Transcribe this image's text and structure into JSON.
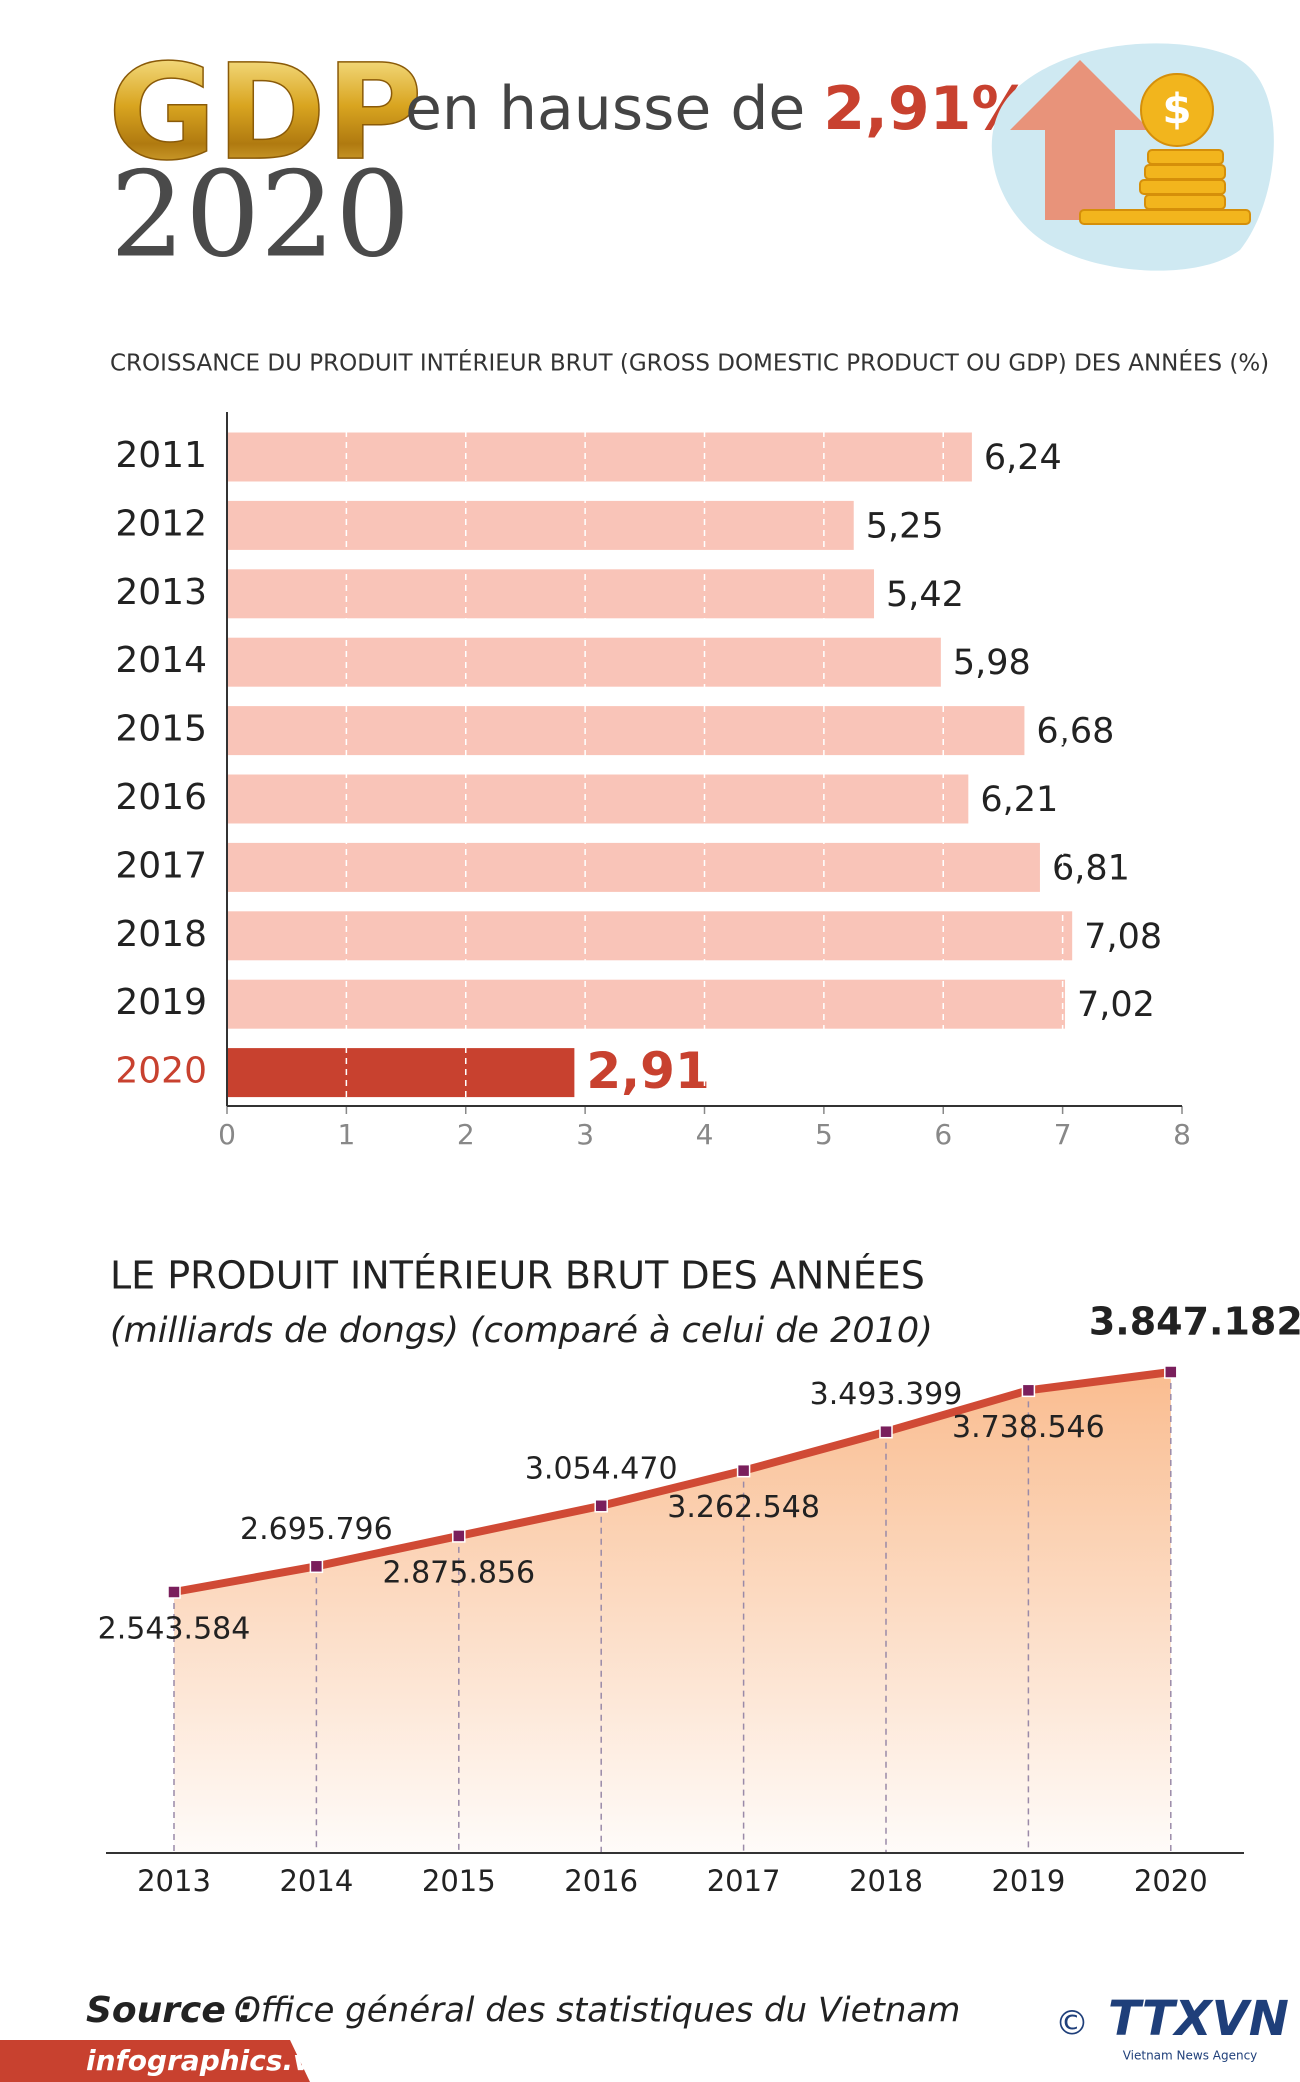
{
  "header": {
    "title": "GDP",
    "year": "2020",
    "headline": "en hausse de",
    "headline_value": "2,91%"
  },
  "chart_data": [
    {
      "type": "bar",
      "orientation": "horizontal",
      "title": "CROISSANCE DU PRODUIT INTÉRIEUR BRUT (GROSS DOMESTIC PRODUCT OU GDP) DES ANNÉES (%)",
      "categories": [
        "2011",
        "2012",
        "2013",
        "2014",
        "2015",
        "2016",
        "2017",
        "2018",
        "2019",
        "2020"
      ],
      "values": [
        6.24,
        5.25,
        5.42,
        5.98,
        6.68,
        6.21,
        6.81,
        7.08,
        7.02,
        2.91
      ],
      "value_labels": [
        "6,24",
        "5,25",
        "5,42",
        "5,98",
        "6,68",
        "6,21",
        "6,81",
        "7,08",
        "7,02",
        "2,91"
      ],
      "colors": [
        "#f9c4b8",
        "#f9c4b8",
        "#f9c4b8",
        "#f9c4b8",
        "#f9c4b8",
        "#f9c4b8",
        "#f9c4b8",
        "#f9c4b8",
        "#f9c4b8",
        "#c8412f"
      ],
      "xlim": [
        0,
        8
      ],
      "xticks": [
        0,
        1,
        2,
        3,
        4,
        5,
        6,
        7,
        8
      ],
      "grid": true
    },
    {
      "type": "line",
      "title": "LE PRODUIT INTÉRIEUR BRUT DES ANNÉES",
      "subtitle": "(milliards de dongs) (comparé à celui de 2010)",
      "categories": [
        "2013",
        "2014",
        "2015",
        "2016",
        "2017",
        "2018",
        "2019",
        "2020"
      ],
      "values": [
        2543584,
        2695796,
        2875856,
        3054470,
        3262548,
        3493399,
        3738546,
        3847182
      ],
      "value_labels": [
        "2.543.584",
        "2.695.796",
        "2.875.856",
        "3.054.470",
        "3.262.548",
        "3.493.399",
        "3.738.546",
        "3.847.182"
      ],
      "color": "#d04a35",
      "marker_color": "#7a1f5c",
      "area_color": "#f9b98a"
    }
  ],
  "footer": {
    "source_label": "Source :",
    "source": "Office général des statistiques du Vietnam",
    "website": "infographics.vn",
    "copyright": "©",
    "logo": "TTXVN",
    "logo_subtitle": "Vietnam News Agency"
  }
}
